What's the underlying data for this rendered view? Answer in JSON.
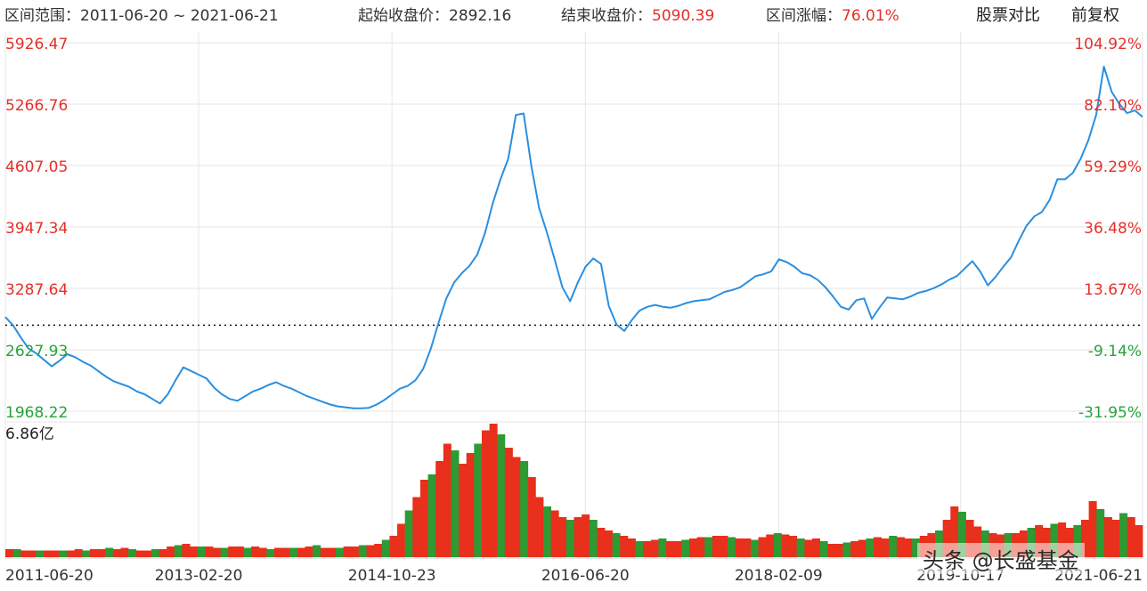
{
  "header": {
    "range_label": "区间范围：",
    "range_start": "2011-06-20",
    "range_sep": "~",
    "range_end": "2021-06-21",
    "open_label": "起始收盘价：",
    "open_value": "2892.16",
    "close_label": "结束收盘价：",
    "close_value": "5090.39",
    "change_label": "区间涨幅：",
    "change_value": "76.01%",
    "compare_button": "股票对比",
    "adjust_button": "前复权"
  },
  "watermark": "头条 @长盛基金",
  "colors": {
    "line": "#2b8fe0",
    "up": "#e8301c",
    "down": "#2e9a34",
    "grid": "#e6e6e6",
    "axis_up": "#e4302a",
    "axis_down": "#27a33a"
  },
  "chart_data": {
    "type": "line",
    "baseline": 2892.16,
    "price_axis": {
      "ticks": [
        "5926.47",
        "5266.76",
        "4607.05",
        "3947.34",
        "3287.64",
        "2627.93",
        "1968.22"
      ],
      "tick_values": [
        5926.47,
        5266.76,
        4607.05,
        3947.34,
        3287.64,
        2627.93,
        1968.22
      ],
      "range": [
        1968.22,
        5926.47
      ]
    },
    "pct_axis": {
      "ticks": [
        "104.92%",
        "82.10%",
        "59.29%",
        "36.48%",
        "13.67%",
        "-9.14%",
        "-31.95%"
      ]
    },
    "x_ticks": [
      "2011-06-20",
      "2013-02-20",
      "2014-10-23",
      "2016-06-20",
      "2018-02-09",
      "2019-10-17",
      "2021-06-21"
    ],
    "x_tick_frac": [
      0.0,
      0.17,
      0.34,
      0.51,
      0.68,
      0.84,
      1.0
    ],
    "series": [
      {
        "values": [
          2980,
          2890,
          2760,
          2640,
          2590,
          2520,
          2450,
          2510,
          2580,
          2550,
          2500,
          2460,
          2400,
          2340,
          2290,
          2260,
          2230,
          2180,
          2150,
          2100,
          2050,
          2150,
          2300,
          2440,
          2400,
          2360,
          2320,
          2220,
          2150,
          2100,
          2080,
          2130,
          2180,
          2210,
          2250,
          2280,
          2240,
          2210,
          2170,
          2130,
          2100,
          2070,
          2040,
          2020,
          2010,
          2000,
          2000,
          2005,
          2040,
          2090,
          2150,
          2210,
          2240,
          2300,
          2420,
          2640,
          2920,
          3180,
          3350,
          3450,
          3530,
          3650,
          3880,
          4200,
          4460,
          4680,
          5150,
          5166,
          4600,
          4150,
          3890,
          3600,
          3300,
          3150,
          3350,
          3520,
          3610,
          3550,
          3100,
          2900,
          2830,
          2950,
          3050,
          3090,
          3110,
          3090,
          3080,
          3100,
          3130,
          3150,
          3160,
          3170,
          3210,
          3250,
          3270,
          3300,
          3360,
          3420,
          3440,
          3470,
          3600,
          3570,
          3520,
          3450,
          3430,
          3380,
          3300,
          3200,
          3090,
          3060,
          3160,
          3180,
          2960,
          3080,
          3190,
          3180,
          3170,
          3200,
          3240,
          3260,
          3290,
          3330,
          3380,
          3420,
          3500,
          3580,
          3470,
          3320,
          3410,
          3520,
          3620,
          3800,
          3960,
          4060,
          4110,
          4240,
          4460,
          4460,
          4530,
          4680,
          4880,
          5150,
          5670,
          5400,
          5270,
          5170,
          5200,
          5130
        ]
      }
    ],
    "volume_axis": {
      "label": "6.86亿",
      "max": 6.86
    },
    "volume_profile": [
      0.06,
      0.06,
      0.05,
      0.05,
      0.05,
      0.05,
      0.05,
      0.05,
      0.05,
      0.06,
      0.05,
      0.06,
      0.06,
      0.07,
      0.06,
      0.07,
      0.06,
      0.05,
      0.05,
      0.06,
      0.06,
      0.08,
      0.09,
      0.1,
      0.08,
      0.08,
      0.08,
      0.07,
      0.07,
      0.08,
      0.08,
      0.07,
      0.08,
      0.07,
      0.06,
      0.07,
      0.07,
      0.07,
      0.07,
      0.08,
      0.09,
      0.07,
      0.07,
      0.07,
      0.08,
      0.08,
      0.09,
      0.09,
      0.1,
      0.13,
      0.16,
      0.25,
      0.35,
      0.45,
      0.58,
      0.62,
      0.72,
      0.85,
      0.8,
      0.7,
      0.78,
      0.85,
      0.95,
      1.0,
      0.92,
      0.82,
      0.75,
      0.72,
      0.6,
      0.45,
      0.38,
      0.35,
      0.3,
      0.28,
      0.3,
      0.32,
      0.28,
      0.22,
      0.2,
      0.18,
      0.16,
      0.14,
      0.12,
      0.12,
      0.13,
      0.14,
      0.12,
      0.12,
      0.13,
      0.14,
      0.15,
      0.15,
      0.16,
      0.16,
      0.15,
      0.14,
      0.14,
      0.13,
      0.15,
      0.17,
      0.18,
      0.17,
      0.16,
      0.14,
      0.13,
      0.14,
      0.12,
      0.1,
      0.1,
      0.11,
      0.12,
      0.13,
      0.14,
      0.15,
      0.14,
      0.16,
      0.15,
      0.14,
      0.14,
      0.16,
      0.18,
      0.2,
      0.28,
      0.38,
      0.34,
      0.28,
      0.23,
      0.2,
      0.18,
      0.17,
      0.18,
      0.18,
      0.2,
      0.22,
      0.24,
      0.22,
      0.25,
      0.26,
      0.22,
      0.24,
      0.28,
      0.42,
      0.36,
      0.3,
      0.28,
      0.33,
      0.3,
      0.24
    ]
  }
}
